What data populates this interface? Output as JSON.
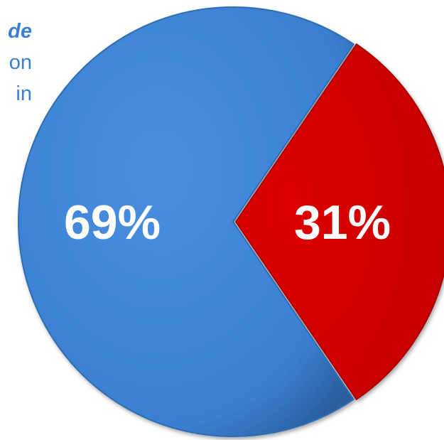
{
  "side_text": {
    "line1": "de",
    "line2": "on",
    "line3": "in"
  },
  "chart_data": {
    "type": "pie",
    "title": "",
    "slices": [
      {
        "value": 69,
        "label": "69%",
        "color": "#3a7fd0"
      },
      {
        "value": 31,
        "label": "31%",
        "color": "#cc0000"
      }
    ]
  }
}
